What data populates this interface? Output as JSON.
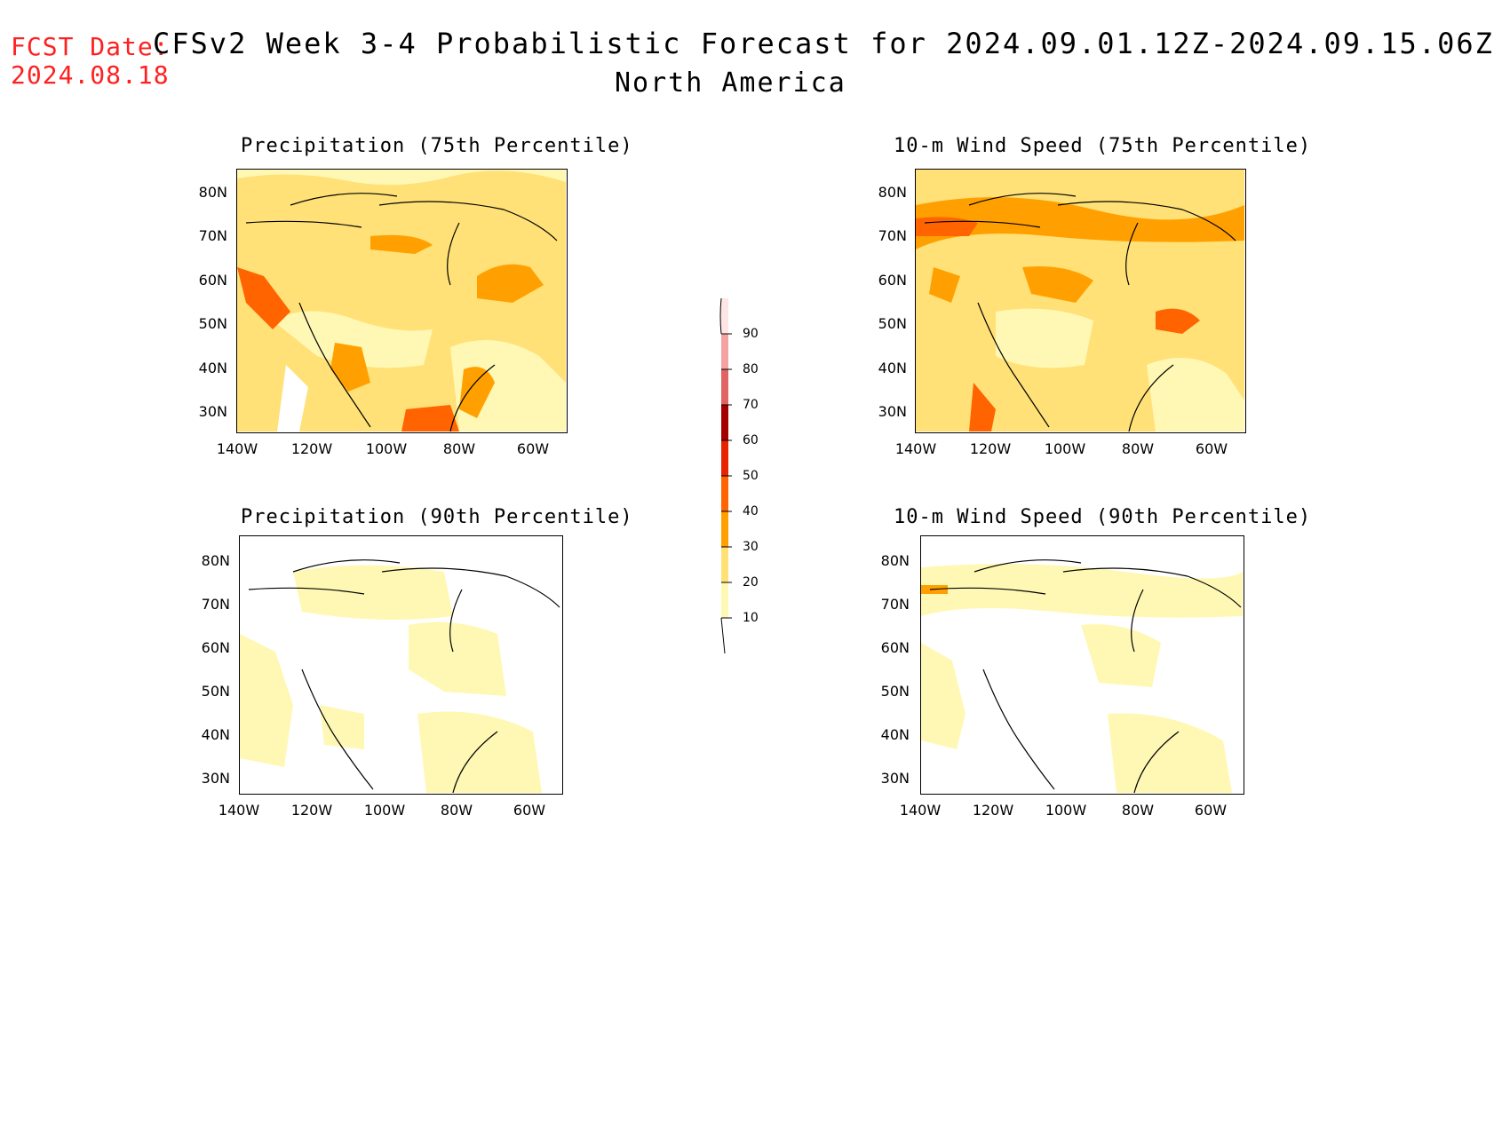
{
  "header": {
    "fcst_label": "FCST Date:",
    "fcst_date": "2024.08.18",
    "title": "CFSv2 Week 3-4 Probabilistic Forecast for 2024.09.01.12Z-2024.09.15.06Z",
    "subtitle": "North America"
  },
  "axes": {
    "lat_ticks": [
      "80N",
      "70N",
      "60N",
      "50N",
      "40N",
      "30N"
    ],
    "lon_ticks": [
      "140W",
      "120W",
      "100W",
      "80W",
      "60W"
    ]
  },
  "panels": [
    {
      "id": "precip75",
      "title": "Precipitation (75th Percentile)"
    },
    {
      "id": "wind75",
      "title": "10-m Wind Speed (75th Percentile)"
    },
    {
      "id": "precip90",
      "title": "Precipitation (90th Percentile)"
    },
    {
      "id": "wind90",
      "title": "10-m Wind Speed (90th Percentile)"
    }
  ],
  "colorbar": {
    "levels": [
      "90",
      "80",
      "70",
      "60",
      "50",
      "40",
      "30",
      "20",
      "10"
    ],
    "colors": {
      "80_90": "#f4a3a3",
      "70_80": "#e06464",
      "60_70": "#a50000",
      "50_60": "#e62400",
      "40_50": "#ff6400",
      "30_40": "#ffa000",
      "20_30": "#ffe178",
      "10_20": "#fff8b4",
      "above_90": "#ffe6e6"
    }
  }
}
